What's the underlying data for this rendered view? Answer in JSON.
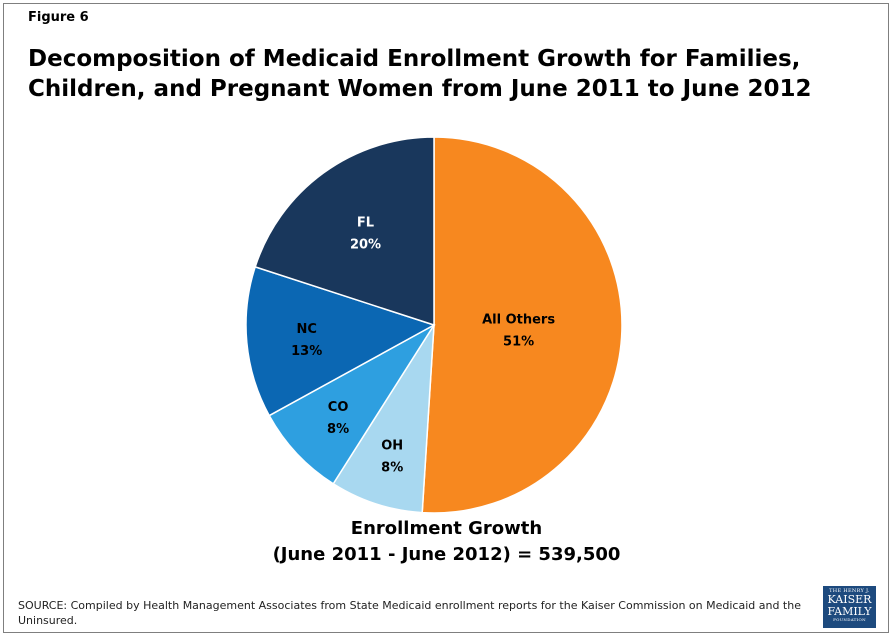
{
  "figure_label": "Figure 6",
  "title_line1": "Decomposition of Medicaid Enrollment Growth for Families,",
  "title_line2": "Children, and Pregnant Women from June 2011 to June 2012",
  "caption_line1": "Enrollment Growth",
  "caption_line2": "(June 2011 - June 2012) = 539,500",
  "source_text": "SOURCE: Compiled by Health Management Associates from State Medicaid enrollment reports for the Kaiser Commission on Medicaid and the Uninsured.",
  "logo": {
    "line1": "THE HENRY J.",
    "line2": "KAISER",
    "line3": "FAMILY",
    "line4": "FOUNDATION",
    "color": "#1d4a7e"
  },
  "chart_data": {
    "type": "pie",
    "title": "Decomposition of Medicaid Enrollment Growth for Families, Children, and Pregnant Women from June 2011 to June 2012",
    "start_angle_deg": 0,
    "direction": "clockwise",
    "slices": [
      {
        "label": "All Others",
        "value": 51,
        "display": "51%",
        "color": "#f7881f",
        "text_color": "#000000"
      },
      {
        "label": "OH",
        "value": 8,
        "display": "8%",
        "color": "#a8d8f0",
        "text_color": "#000000"
      },
      {
        "label": "CO",
        "value": 8,
        "display": "8%",
        "color": "#2e9fe0",
        "text_color": "#000000"
      },
      {
        "label": "NC",
        "value": 13,
        "display": "13%",
        "color": "#0b67b3",
        "text_color": "#000000"
      },
      {
        "label": "FL",
        "value": 20,
        "display": "20%",
        "color": "#19375c",
        "text_color": "#ffffff"
      }
    ]
  }
}
